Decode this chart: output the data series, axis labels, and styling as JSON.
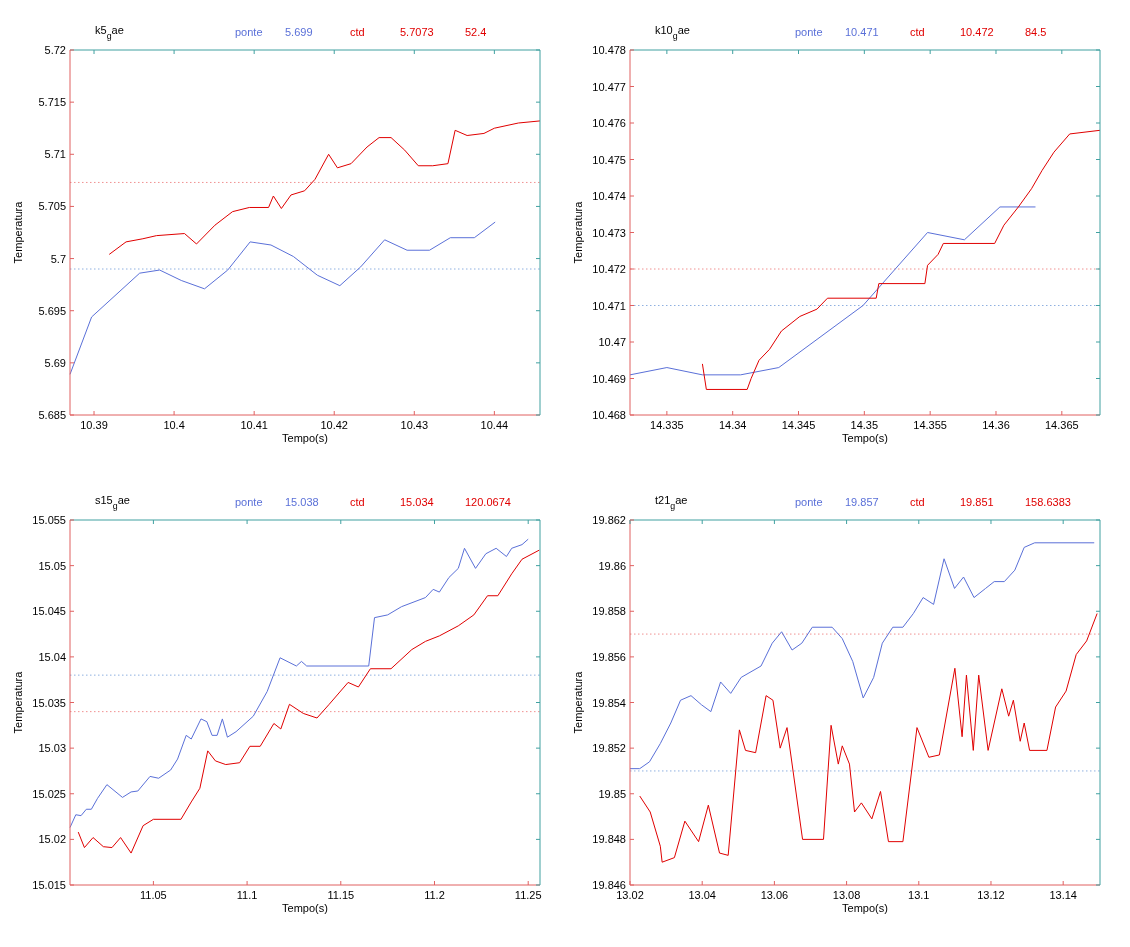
{
  "chart_data": [
    {
      "type": "line",
      "title": "k5$_{g}$ae",
      "xlabel": "Tempo(s)",
      "ylabel": "Temperatura",
      "legend": "top",
      "grid": false,
      "marker": "none",
      "line_style": "solid",
      "annotations": [
        "5.699",
        "5.7073",
        "52.4"
      ],
      "xlim": [
        10.387,
        10.4457
      ],
      "xticks": [
        10.39,
        10.4,
        10.41,
        10.42,
        10.43,
        10.44
      ],
      "ylim": [
        5.685,
        5.72
      ],
      "yticks": [
        5.685,
        5.69,
        5.695,
        5.7,
        5.705,
        5.71,
        5.715,
        5.72
      ],
      "ref_lines": [
        {
          "axis": "y",
          "value": 5.699,
          "color": "#8fb0e0",
          "line_style": "dotted"
        },
        {
          "axis": "y",
          "value": 5.7073,
          "color": "#f09090",
          "line_style": "dotted"
        }
      ],
      "series": [
        {
          "name": "ponte",
          "color": "#5a70d8",
          "x": [
            10.387,
            10.3897,
            10.3957,
            10.3982,
            10.4009,
            10.4038,
            10.4067,
            10.4095,
            10.4121,
            10.4149,
            10.4179,
            10.4207,
            10.4233,
            10.4263,
            10.4291,
            10.4319,
            10.4345,
            10.4375,
            10.4401
          ],
          "values": [
            5.6889,
            5.6944,
            5.6986,
            5.6989,
            5.6979,
            5.6971,
            5.6989,
            5.7016,
            5.7013,
            5.7002,
            5.6984,
            5.6974,
            5.6992,
            5.7018,
            5.7008,
            5.7008,
            5.702,
            5.702,
            5.7035
          ]
        },
        {
          "name": "ctd",
          "color": "#e00000",
          "x": [
            10.3919,
            10.394,
            10.3961,
            10.3978,
            10.4013,
            10.4028,
            10.4051,
            10.4073,
            10.4094,
            10.4118,
            10.4124,
            10.4134,
            10.4146,
            10.4163,
            10.4176,
            10.4193,
            10.4204,
            10.4221,
            10.4241,
            10.4256,
            10.4271,
            10.4288,
            10.4305,
            10.4323,
            10.4342,
            10.4351,
            10.4366,
            10.4387,
            10.44,
            10.443,
            10.4457
          ],
          "values": [
            5.7004,
            5.7016,
            5.7019,
            5.7022,
            5.7024,
            5.7014,
            5.7032,
            5.7045,
            5.7049,
            5.7049,
            5.706,
            5.7048,
            5.7061,
            5.7065,
            5.7076,
            5.71,
            5.7087,
            5.7091,
            5.7107,
            5.7116,
            5.7116,
            5.7104,
            5.7089,
            5.7089,
            5.7091,
            5.7123,
            5.7118,
            5.712,
            5.7125,
            5.713,
            5.7132
          ]
        }
      ]
    },
    {
      "type": "line",
      "title": "k10$_{g}$ae",
      "xlabel": "Tempo(s)",
      "ylabel": "Temperatura",
      "legend": "top",
      "grid": false,
      "marker": "none",
      "line_style": "solid",
      "annotations": [
        "10.471",
        "10.472",
        "84.5"
      ],
      "xlim": [
        14.3322,
        14.3679
      ],
      "xticks": [
        14.335,
        14.34,
        14.345,
        14.35,
        14.355,
        14.36,
        14.365
      ],
      "ylim": [
        10.468,
        10.478
      ],
      "yticks": [
        10.468,
        10.469,
        10.47,
        10.471,
        10.472,
        10.473,
        10.474,
        10.475,
        10.476,
        10.477,
        10.478
      ],
      "ref_lines": [
        {
          "axis": "y",
          "value": 10.471,
          "color": "#8fb0e0",
          "line_style": "dotted"
        },
        {
          "axis": "y",
          "value": 10.472,
          "color": "#f09090",
          "line_style": "dotted"
        }
      ],
      "series": [
        {
          "name": "ponte",
          "color": "#5a70d8",
          "x": [
            14.3322,
            14.335,
            14.3377,
            14.3406,
            14.3435,
            14.3499,
            14.3548,
            14.3576,
            14.3603,
            14.363
          ],
          "values": [
            10.4691,
            10.4693,
            10.4691,
            10.4691,
            10.4693,
            10.471,
            10.473,
            10.4728,
            10.4737,
            10.4737
          ]
        },
        {
          "name": "ctd",
          "color": "#e00000",
          "x": [
            14.3377,
            14.338,
            14.3411,
            14.3414,
            14.342,
            14.3428,
            14.3437,
            14.3451,
            14.3464,
            14.3472,
            14.3509,
            14.3511,
            14.3546,
            14.3548,
            14.3556,
            14.356,
            14.3599,
            14.3606,
            14.3617,
            14.3627,
            14.3635,
            14.3644,
            14.3656,
            14.3679
          ],
          "values": [
            10.4694,
            10.4687,
            10.4687,
            10.469,
            10.4695,
            10.4698,
            10.4703,
            10.4707,
            10.4709,
            10.4712,
            10.4712,
            10.4716,
            10.4716,
            10.4721,
            10.4724,
            10.4727,
            10.4727,
            10.4732,
            10.4737,
            10.4742,
            10.4747,
            10.4752,
            10.4757,
            10.4758
          ]
        }
      ]
    },
    {
      "type": "line",
      "title": "s15$_{g}$ae",
      "xlabel": "Tempo(s)",
      "ylabel": "Temperatura",
      "legend": "top",
      "grid": false,
      "marker": "none",
      "line_style": "solid",
      "annotations": [
        "15.038",
        "15.034",
        "120.0674"
      ],
      "xlim": [
        11.0055,
        11.2563
      ],
      "xticks": [
        11.05,
        11.1,
        11.15,
        11.2,
        11.25
      ],
      "ylim": [
        15.015,
        15.055
      ],
      "yticks": [
        15.015,
        15.02,
        15.025,
        15.03,
        15.035,
        15.04,
        15.045,
        15.05,
        15.055
      ],
      "ref_lines": [
        {
          "axis": "y",
          "value": 15.038,
          "color": "#8fb0e0",
          "line_style": "dotted"
        },
        {
          "axis": "y",
          "value": 15.034,
          "color": "#f09090",
          "line_style": "dotted"
        }
      ],
      "series": [
        {
          "name": "ponte",
          "color": "#5a70d8",
          "x": [
            11.0055,
            11.0086,
            11.0114,
            11.0142,
            11.0169,
            11.0202,
            11.0252,
            11.0335,
            11.0381,
            11.0417,
            11.0482,
            11.0528,
            11.0592,
            11.0629,
            11.0675,
            11.0702,
            11.0754,
            11.0785,
            11.0813,
            11.084,
            11.0868,
            11.0895,
            11.0941,
            11.1033,
            11.1107,
            11.1176,
            11.1263,
            11.129,
            11.1318,
            11.1649,
            11.168,
            11.175,
            11.1824,
            11.1952,
            11.1993,
            11.2026,
            11.2077,
            11.2127,
            11.216,
            11.2219,
            11.2274,
            11.2329,
            11.2384,
            11.2412,
            11.2467,
            11.25
          ],
          "values": [
            15.0213,
            15.0227,
            15.0226,
            15.0233,
            15.0233,
            15.0245,
            15.026,
            15.0246,
            15.0252,
            15.0253,
            15.0269,
            15.0267,
            15.0276,
            15.0288,
            15.0314,
            15.031,
            15.0332,
            15.0329,
            15.0314,
            15.0314,
            15.0332,
            15.0312,
            15.0318,
            15.0335,
            15.0362,
            15.0399,
            15.039,
            15.0395,
            15.039,
            15.039,
            15.0443,
            15.0446,
            15.0455,
            15.0465,
            15.0474,
            15.0471,
            15.0487,
            15.0497,
            15.0519,
            15.0497,
            15.0513,
            15.0519,
            15.051,
            15.0519,
            15.0523,
            15.0529
          ]
        },
        {
          "name": "ctd",
          "color": "#e00000",
          "x": [
            11.0099,
            11.0132,
            11.0178,
            11.0233,
            11.0279,
            11.0325,
            11.0381,
            11.0445,
            11.05,
            11.0647,
            11.0702,
            11.0748,
            11.079,
            11.0831,
            11.0886,
            11.096,
            11.1015,
            11.107,
            11.1143,
            11.118,
            11.1226,
            11.13,
            11.1373,
            11.1438,
            11.1539,
            11.1594,
            11.1658,
            11.1768,
            11.1879,
            11.1952,
            11.2026,
            11.2127,
            11.221,
            11.2283,
            11.2338,
            11.2412,
            11.2467,
            11.2559
          ],
          "values": [
            15.0208,
            15.0191,
            15.0202,
            15.0192,
            15.0191,
            15.0202,
            15.0185,
            15.0215,
            15.0222,
            15.0222,
            15.0241,
            15.0256,
            15.0297,
            15.0286,
            15.0282,
            15.0284,
            15.0302,
            15.0302,
            15.0327,
            15.0321,
            15.0348,
            15.0338,
            15.0333,
            15.0348,
            15.0372,
            15.0367,
            15.0387,
            15.0387,
            15.0408,
            15.0417,
            15.0423,
            15.0434,
            15.0446,
            15.0467,
            15.0467,
            15.0491,
            15.0507,
            15.0517
          ]
        }
      ]
    },
    {
      "type": "line",
      "title": "t21$_{g}$ae",
      "xlabel": "Tempo(s)",
      "ylabel": "Temperatura",
      "legend": "top",
      "grid": false,
      "marker": "none",
      "line_style": "solid",
      "annotations": [
        "19.857",
        "19.851",
        "158.6383"
      ],
      "xlim": [
        13.02,
        13.1502
      ],
      "xticks": [
        13.02,
        13.04,
        13.06,
        13.08,
        13.1,
        13.12,
        13.14
      ],
      "ylim": [
        19.846,
        19.862
      ],
      "yticks": [
        19.846,
        19.848,
        19.85,
        19.852,
        19.854,
        19.856,
        19.858,
        19.86,
        19.862
      ],
      "ref_lines": [
        {
          "axis": "y",
          "value": 19.857,
          "color": "#f09090",
          "line_style": "dotted"
        },
        {
          "axis": "y",
          "value": 19.851,
          "color": "#8fb0e0",
          "line_style": "dotted"
        }
      ],
      "series": [
        {
          "name": "ponte",
          "color": "#5a70d8",
          "x": [
            13.02,
            13.0227,
            13.0254,
            13.0284,
            13.0313,
            13.034,
            13.0369,
            13.0398,
            13.0424,
            13.0451,
            13.0479,
            13.0508,
            13.0563,
            13.0594,
            13.062,
            13.0649,
            13.0676,
            13.0705,
            13.076,
            13.0788,
            13.0817,
            13.0846,
            13.0875,
            13.0899,
            13.0928,
            13.0956,
            13.0985,
            13.1012,
            13.1041,
            13.107,
            13.1099,
            13.1124,
            13.1153,
            13.1185,
            13.1209,
            13.1237,
            13.1266,
            13.1292,
            13.1321,
            13.1486
          ],
          "values": [
            19.8511,
            19.8511,
            19.8514,
            19.8522,
            19.8531,
            19.8541,
            19.8543,
            19.8539,
            19.8536,
            19.8549,
            19.8544,
            19.8551,
            19.8556,
            19.8566,
            19.8571,
            19.8563,
            19.8566,
            19.8573,
            19.8573,
            19.8568,
            19.8558,
            19.8542,
            19.8551,
            19.8566,
            19.8573,
            19.8573,
            19.8579,
            19.8586,
            19.8583,
            19.8603,
            19.859,
            19.8595,
            19.8586,
            19.859,
            19.8593,
            19.8593,
            19.8598,
            19.8608,
            19.861,
            19.861
          ]
        },
        {
          "name": "ctd",
          "color": "#e00000",
          "x": [
            13.0227,
            13.0256,
            13.0284,
            13.0289,
            13.0323,
            13.0352,
            13.039,
            13.0417,
            13.0448,
            13.0472,
            13.0503,
            13.052,
            13.0548,
            13.0577,
            13.0596,
            13.0616,
            13.0635,
            13.0678,
            13.0736,
            13.0757,
            13.0777,
            13.0788,
            13.0808,
            13.0822,
            13.0841,
            13.087,
            13.0894,
            13.0916,
            13.0956,
            13.0995,
            13.1028,
            13.1057,
            13.11,
            13.112,
            13.1132,
            13.1151,
            13.1166,
            13.1192,
            13.123,
            13.1249,
            13.1262,
            13.1281,
            13.1292,
            13.1307,
            13.1355,
            13.1379,
            13.1408,
            13.1436,
            13.1465,
            13.1494
          ],
          "values": [
            19.8499,
            19.8492,
            19.8477,
            19.847,
            19.8472,
            19.8488,
            19.8479,
            19.8495,
            19.8474,
            19.8473,
            19.8528,
            19.8519,
            19.8518,
            19.8543,
            19.8541,
            19.852,
            19.8529,
            19.848,
            19.848,
            19.853,
            19.8513,
            19.8521,
            19.8513,
            19.8492,
            19.8496,
            19.8489,
            19.8501,
            19.8479,
            19.8479,
            19.8529,
            19.8516,
            19.8517,
            19.8555,
            19.8525,
            19.8552,
            19.8519,
            19.8552,
            19.8519,
            19.8546,
            19.8534,
            19.8541,
            19.8523,
            19.8531,
            19.8519,
            19.8519,
            19.8538,
            19.8545,
            19.8561,
            19.8567,
            19.8579
          ]
        }
      ]
    }
  ]
}
